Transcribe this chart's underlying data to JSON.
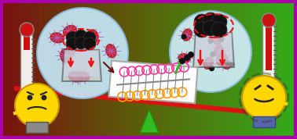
{
  "fig_width": 3.78,
  "fig_height": 1.78,
  "dpi": 100,
  "border_color": "#AA00AA",
  "beam_color": "#DD1111",
  "beam_lw": 6,
  "pyramid_color": "#33BB22",
  "sphere_face": "#C5E8F8",
  "sphere_edge": "#88BBDD",
  "micelle_red": "#CC2222",
  "micelle_purple": "#AA66CC",
  "beaker_face": "#BBBBBB",
  "beaker_edge": "#555555",
  "protein_color": "#111111",
  "red_arrow": "#EE1111",
  "green_arrow": "#22BB22",
  "therm_face": "#FFFFFF",
  "therm_mercury": "#CC1111",
  "emoji_face": "#FFD700",
  "emoji_edge": "#CC9900",
  "chem_box_face": "#FFFFFF",
  "chem_box_edge": "#AAAAAA",
  "orange_ring": "#FF9900",
  "pink_ring": "#FF3399",
  "chain_color": "#888888"
}
